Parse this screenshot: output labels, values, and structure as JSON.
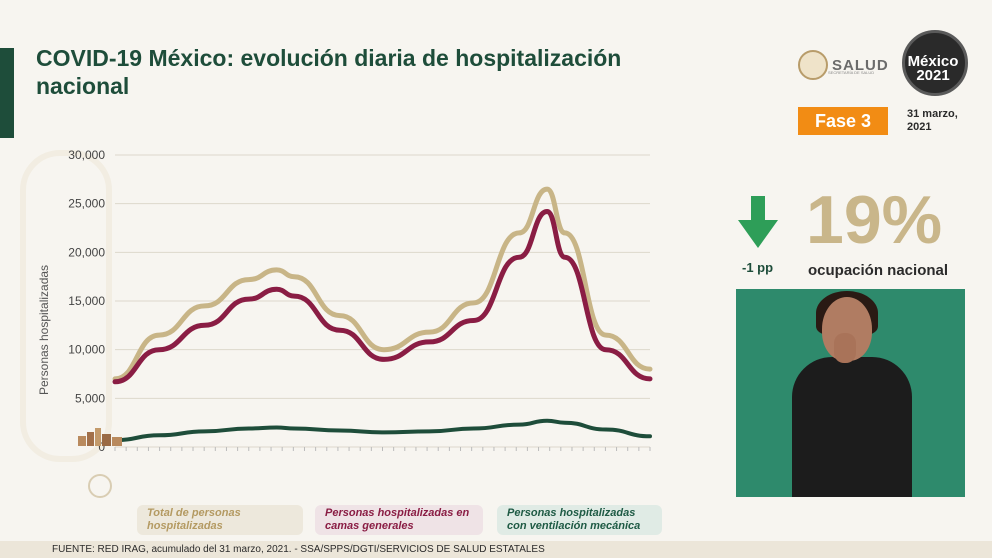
{
  "header": {
    "title": "COVID-19 México: evolución diaria de hospitalización nacional"
  },
  "logos": {
    "salud": "SALUD",
    "salud_sub": "SECRETARÍA DE SALUD",
    "mexico": "México 2021"
  },
  "badge": {
    "fase": "Fase 3"
  },
  "date": {
    "line1": "31 marzo,",
    "line2": "2021"
  },
  "indicator": {
    "percent": "19%",
    "label": "ocupación nacional",
    "change": "-1 pp",
    "arrow_icon": "arrow-down-icon",
    "arrow_color": "#2e9e58"
  },
  "legend": {
    "total": "Total de personas hospitalizadas",
    "general": "Personas hospitalizadas en camas generales",
    "ventilacion": "Personas hospitalizadas con ventilación mecánica"
  },
  "footer": {
    "source": "FUENTE: RED IRAG, acumulado del 31 marzo, 2021. -   SSA/SPPS/DGTI/SERVICIOS DE SALUD ESTATALES"
  },
  "chart_data": {
    "type": "line",
    "ylabel": "Personas hospitalizadas",
    "xlabel": "",
    "ylim": [
      0,
      30000
    ],
    "yticks": [
      "0",
      "5,000",
      "10,000",
      "15,000",
      "20,000",
      "25,000",
      "30,000"
    ],
    "ytick_values": [
      0,
      5000,
      10000,
      15000,
      20000,
      25000,
      30000
    ],
    "grid": true,
    "x": [
      "2020-04-01",
      "2020-05-01",
      "2020-06-01",
      "2020-07-01",
      "2020-07-20",
      "2020-08-01",
      "2020-09-01",
      "2020-10-01",
      "2020-11-01",
      "2020-12-01",
      "2021-01-01",
      "2021-01-20",
      "2021-02-01",
      "2021-03-01",
      "2021-03-31"
    ],
    "series": [
      {
        "name": "Total de personas hospitalizadas",
        "color": "#c8b587",
        "values": [
          7000,
          11500,
          14500,
          17200,
          18200,
          17500,
          13500,
          10000,
          11800,
          14800,
          22000,
          26500,
          22000,
          11500,
          8000
        ]
      },
      {
        "name": "Personas hospitalizadas en camas generales",
        "color": "#8a1d44",
        "values": [
          6700,
          10000,
          12500,
          15200,
          16200,
          15500,
          12000,
          9000,
          10800,
          13000,
          19500,
          24200,
          19500,
          10000,
          7000
        ]
      },
      {
        "name": "Personas hospitalizadas con ventilación mecánica",
        "color": "#1e4d3a",
        "values": [
          700,
          1200,
          1600,
          1900,
          2000,
          1900,
          1700,
          1500,
          1600,
          1900,
          2300,
          2700,
          2500,
          1800,
          1100
        ]
      }
    ]
  }
}
